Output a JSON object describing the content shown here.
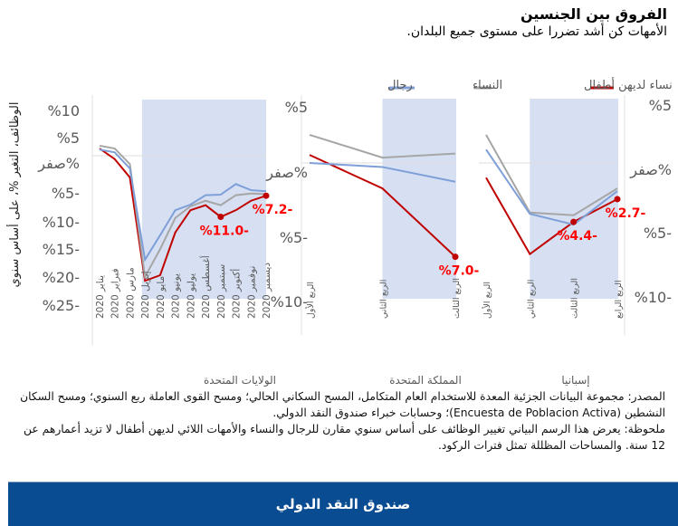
{
  "header": {
    "title": "الفروق بين الجنسين",
    "subtitle": "الأمهات كن أشد تضررا على مستوى جميع البلدان."
  },
  "chart_data": {
    "type": "line",
    "ylabel": "الوظائف، التغير %، على أساس سنوي",
    "legend": {
      "placement": "top",
      "entries": [
        {
          "name": "نساء لديهن أطفال",
          "color": "#c00000"
        },
        {
          "name": "النساء",
          "color": "#a6a6a6"
        },
        {
          "name": "رجال",
          "color": "#7f9fd8"
        }
      ]
    },
    "shading_color": "#d6e0f2",
    "panels": [
      {
        "name": "الولايات المتحدة",
        "categories": [
          "يناير 2020",
          "فبراير 2020",
          "مارس 2020",
          "إبريل 2020",
          "مايو 2020",
          "يونيو 2020",
          "يوليو 2020",
          "أغسطس 2020",
          "سبتمبر 2020",
          "أكتوبر 2020",
          "نوفمبر 2020",
          "ديسمبر 2020"
        ],
        "y_ticks": [
          "%10",
          "%5",
          "صفر%",
          "%5-",
          "%10-",
          "%15-",
          "%20-",
          "%25-"
        ],
        "ylim": [
          -25,
          10
        ],
        "shaded_from": 3,
        "shaded_to": 11,
        "series": [
          {
            "name": "نساء لديهن أطفال",
            "values": [
              1.3,
              -0.6,
              -3.9,
              -22.5,
              -21.5,
              -13.8,
              -9.8,
              -8.9,
              -11.0,
              -9.8,
              -8.1,
              -7.2
            ]
          },
          {
            "name": "النساء",
            "values": [
              1.8,
              1.3,
              -1.5,
              -21.8,
              -16.8,
              -11.2,
              -9.1,
              -8.1,
              -8.9,
              -7.1,
              -6.8,
              -6.9
            ]
          },
          {
            "name": "رجال",
            "values": [
              1.1,
              0.6,
              -2.3,
              -18.7,
              -14.3,
              -9.8,
              -8.8,
              -7.1,
              -7.0,
              -5.1,
              -6.2,
              -6.4
            ]
          }
        ],
        "data_labels": [
          {
            "index": 8,
            "text": "%11.0-"
          },
          {
            "index": 11,
            "text": "%7.2-"
          }
        ]
      },
      {
        "name": "المملكة المتحدة",
        "categories": [
          "الربع الأول",
          "الربع الثاني",
          "الربع الثالث"
        ],
        "y_ticks": [
          "%5",
          "صفر%",
          "%5-",
          "%10-"
        ],
        "ylim": [
          -10,
          5
        ],
        "shaded_from": 1,
        "shaded_to": 2,
        "series": [
          {
            "name": "نساء لديهن أطفال",
            "values": [
              0.6,
              -1.9,
              -7.0
            ]
          },
          {
            "name": "النساء",
            "values": [
              2.1,
              0.4,
              0.7
            ]
          },
          {
            "name": "رجال",
            "values": [
              0.0,
              -0.3,
              -1.4
            ]
          }
        ],
        "data_labels": [
          {
            "index": 2,
            "text": "%7.0-"
          }
        ]
      },
      {
        "name": "إسبانيا",
        "categories": [
          "الربع الأول",
          "الربع الثاني",
          "الربع الثالث",
          "الربع الرابع"
        ],
        "y_ticks": [
          "%5",
          "صفر%",
          "%5-",
          "%10-"
        ],
        "ylim": [
          -10,
          5
        ],
        "shaded_from": 1,
        "shaded_to": 3,
        "series": [
          {
            "name": "نساء لديهن أطفال",
            "values": [
              -1.1,
              -6.8,
              -4.4,
              -2.7
            ]
          },
          {
            "name": "النساء",
            "values": [
              2.1,
              -3.7,
              -3.9,
              -1.9
            ]
          },
          {
            "name": "رجال",
            "values": [
              1.0,
              -3.8,
              -4.6,
              -2.1
            ]
          }
        ],
        "data_labels": [
          {
            "index": 2,
            "text": "%4.4-"
          },
          {
            "index": 3,
            "text": "%2.7-"
          }
        ]
      }
    ]
  },
  "notes": {
    "source": "المصدر: مجموعة البيانات الجزئية المعدة للاستخدام العام المتكامل، المسح السكاني الحالي؛ ومسح القوى العاملة ربع السنوي؛ ومسح السكان النشطين (Encuesta de Poblacion Activa)؛ وحسابات خبراء صندوق النقد الدولي.",
    "note": "ملحوظة: يعرض هذا الرسم البياني تغيير الوظائف على أساس سنوي مقارن للرجال والنساء والأمهات اللائي لديهن أطفال لا تزيد أعمارهم عن 12 سنة. والمساحات المظللة تمثل فترات الركود."
  },
  "footer": {
    "label": "صندوق النقد الدولي"
  }
}
